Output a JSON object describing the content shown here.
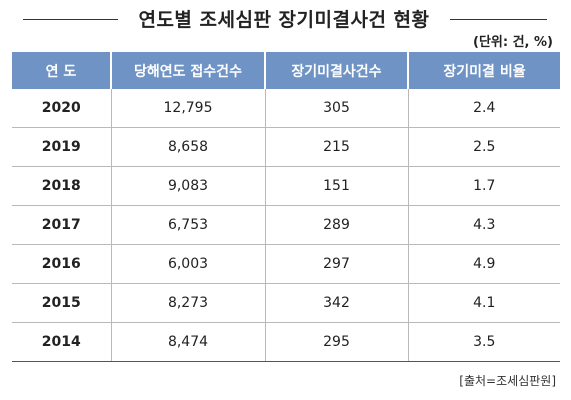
{
  "title": "연도별 조세심판 장기미결사건 현황",
  "unit": "(단위: 건, %)",
  "table": {
    "headers": [
      "연 도",
      "당해연도 접수건수",
      "장기미결사건수",
      "장기미결 비율"
    ],
    "rows": [
      [
        "2020",
        "12,795",
        "305",
        "2.4"
      ],
      [
        "2019",
        "8,658",
        "215",
        "2.5"
      ],
      [
        "2018",
        "9,083",
        "151",
        "1.7"
      ],
      [
        "2017",
        "6,753",
        "289",
        "4.3"
      ],
      [
        "2016",
        "6,003",
        "297",
        "4.9"
      ],
      [
        "2015",
        "8,273",
        "342",
        "4.1"
      ],
      [
        "2014",
        "8,474",
        "295",
        "3.5"
      ]
    ]
  },
  "source": "[출처=조세심판원]",
  "colors": {
    "header_bg": "#6e93c4",
    "header_text": "#ffffff",
    "grid": "#b9b9b9"
  }
}
